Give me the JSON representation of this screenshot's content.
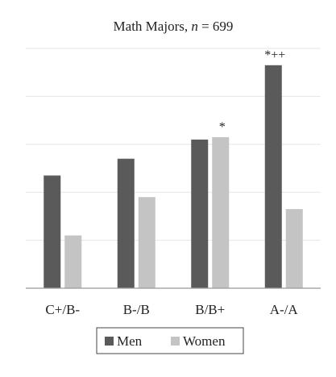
{
  "chart_data": {
    "type": "bar",
    "title_main": "Math Majors, ",
    "title_italic": "n",
    "title_rest": " = 699",
    "categories": [
      "C+/B-",
      "B-/B",
      "B/B+",
      "A-/A"
    ],
    "series": [
      {
        "name": "Men",
        "values": [
          47,
          54,
          62,
          93
        ],
        "color": "#5a5a5a"
      },
      {
        "name": "Women",
        "values": [
          22,
          38,
          63,
          33
        ],
        "color": "#c4c4c4"
      }
    ],
    "annotations": [
      {
        "category": "B/B+",
        "series": "Women",
        "text": "*"
      },
      {
        "category": "A-/A",
        "series": "Men",
        "text": "*++"
      }
    ],
    "ylim": [
      0,
      100
    ],
    "grid": true,
    "legend_position": "bottom"
  }
}
